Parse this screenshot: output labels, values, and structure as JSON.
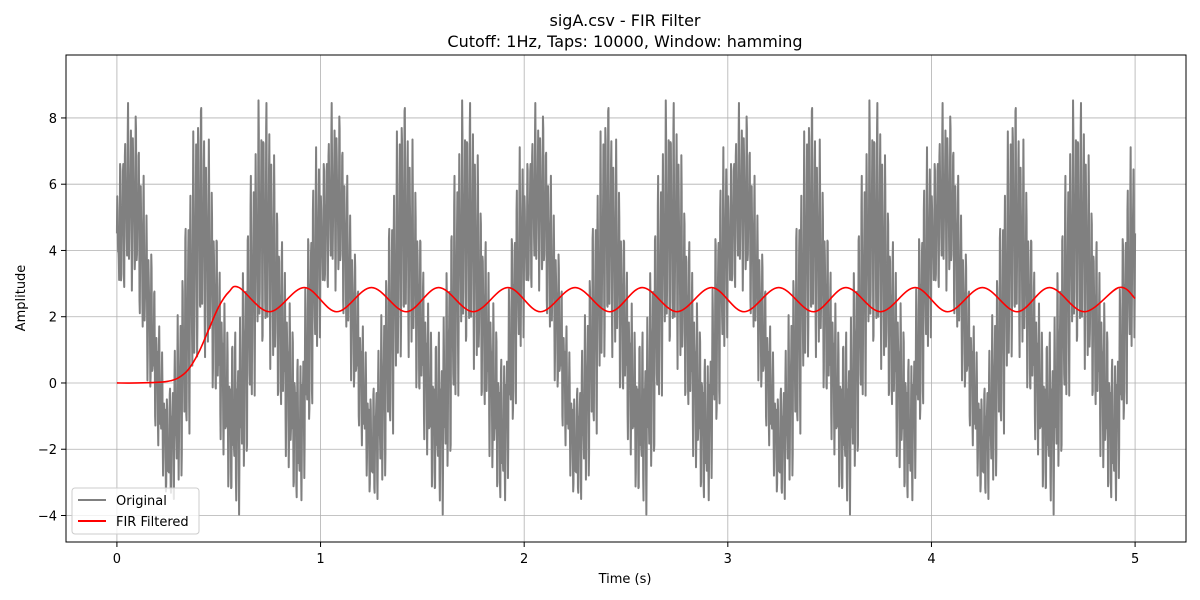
{
  "chart_data": {
    "type": "line",
    "title": "sigA.csv - FIR Filter",
    "subtitle": "Cutoff: 1Hz, Taps: 10000, Window: hamming",
    "xlabel": "Time (s)",
    "ylabel": "Amplitude",
    "xlim": [
      -0.25,
      5.25
    ],
    "ylim": [
      -4.8,
      9.9
    ],
    "x_ticks": [
      0,
      1,
      2,
      3,
      4,
      5
    ],
    "y_ticks": [
      -4,
      -2,
      0,
      2,
      4,
      6,
      8
    ],
    "x_tick_labels": [
      "0",
      "1",
      "2",
      "3",
      "4",
      "5"
    ],
    "y_tick_labels": [
      "−4",
      "−2",
      "0",
      "2",
      "4",
      "6",
      "8"
    ],
    "grid": true,
    "legend_position": "lower-left",
    "series": [
      {
        "name": "Original",
        "color": "#808080",
        "description_points": {
          "x": [
            0,
            0.05,
            0.1,
            0.15,
            0.2,
            0.25,
            0.3,
            0.35,
            0.4,
            0.45,
            0.5,
            0.55,
            0.6,
            0.65,
            0.7,
            0.75,
            0.8,
            0.85,
            0.9,
            0.95,
            1.0
          ],
          "y_max": [
            6.0,
            8.5,
            8.2,
            5.2,
            2.3,
            -0.5,
            2.2,
            6.0,
            9.2,
            7.5,
            4.0,
            1.4,
            2.0,
            6.0,
            8.9,
            8.5,
            5.0,
            2.5,
            0.5,
            5.9,
            8.2
          ],
          "y_min": [
            2.0,
            3.0,
            2.5,
            0.0,
            -2.0,
            -3.8,
            -3.5,
            -2.0,
            1.0,
            0.5,
            -1.5,
            -3.5,
            -4.1,
            -2.0,
            1.0,
            0.5,
            -1.0,
            -3.2,
            -4.1,
            -1.5,
            1.5
          ]
        }
      },
      {
        "name": "FIR Filtered",
        "color": "#ff0000",
        "description_points": {
          "x": [
            0,
            0.1,
            0.2,
            0.25,
            0.3,
            0.35,
            0.4,
            0.45,
            0.5,
            0.55,
            0.6,
            0.75,
            0.92,
            1.08,
            1.25,
            1.42,
            1.58,
            1.75,
            1.92,
            2.08,
            2.25,
            2.42,
            2.58,
            2.75,
            2.92,
            3.08,
            3.25,
            3.42,
            3.58,
            3.75,
            3.92,
            4.08,
            4.25,
            4.42,
            4.58,
            4.75,
            4.92,
            5.0
          ],
          "y": [
            0.0,
            0.0,
            0.02,
            0.05,
            0.15,
            0.4,
            0.9,
            1.6,
            2.3,
            2.75,
            2.88,
            2.15,
            2.88,
            2.15,
            2.88,
            2.15,
            2.88,
            2.15,
            2.88,
            2.15,
            2.88,
            2.15,
            2.88,
            2.15,
            2.88,
            2.15,
            2.88,
            2.15,
            2.88,
            2.15,
            2.88,
            2.15,
            2.88,
            2.15,
            2.88,
            2.15,
            2.88,
            2.55
          ]
        }
      }
    ]
  }
}
